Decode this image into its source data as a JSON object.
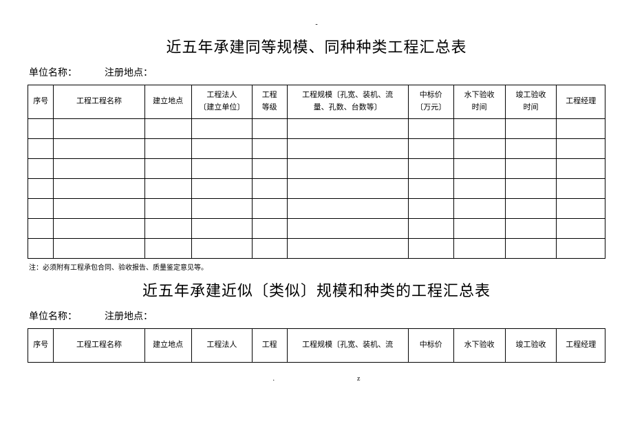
{
  "topDash": "-",
  "title1": "近五年承建同等规模、同种种类工程汇总表",
  "subhead": {
    "unit_label": "单位名称：",
    "reg_label": "注册地点："
  },
  "table1": {
    "columns": [
      "序号",
      "工程工程名称",
      "建立地点",
      "工程法人\n〔建立单位〕",
      "工程\n等级",
      "工程规模〔孔宽、装机、流\n量、孔数、台数等〕",
      "中标价\n〔万元〕",
      "水下验收\n时间",
      "竣工验收\n时间",
      "工程经理"
    ],
    "empty_rows": 7
  },
  "note1": "注：必须附有工程承包合同、验收报告、质量鉴定意见等。",
  "title2": "近五年承建近似〔类似〕规模和种类的工程汇总表",
  "table2": {
    "columns": [
      "序号",
      "工程工程名称",
      "建立地点",
      "工程法人",
      "工程",
      "工程规模〔孔宽、装机、流",
      "中标价",
      "水下验收",
      "竣工验收",
      "工程经理"
    ]
  },
  "footer": {
    "left": ".",
    "right": "z"
  }
}
